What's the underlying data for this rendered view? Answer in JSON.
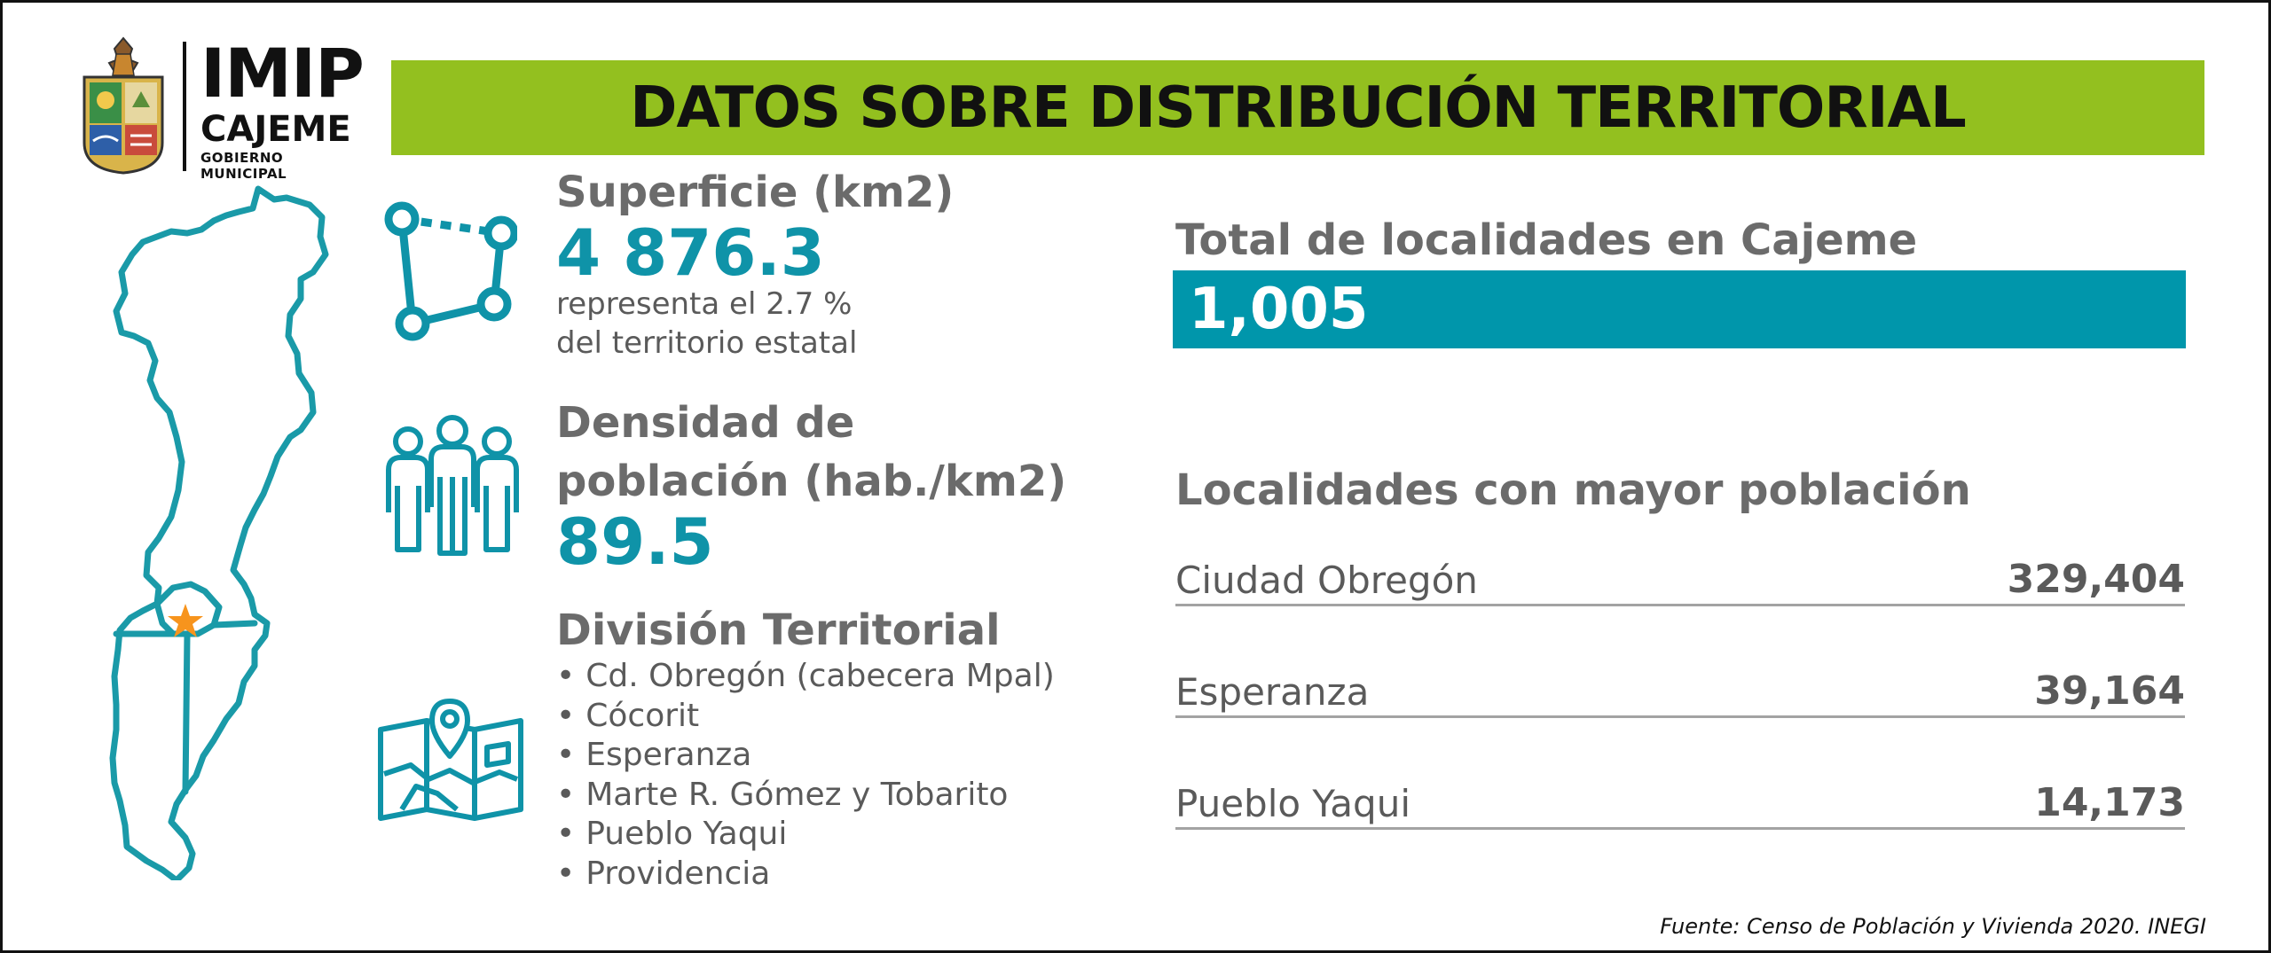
{
  "logo": {
    "brand": "IMIP",
    "city": "CAJEME",
    "subtitle": "GOBIERNO MUNICIPAL"
  },
  "title": "DATOS SOBRE DISTRIBUCIÓN TERRITORIAL",
  "superficie": {
    "label": "Superficie (km2)",
    "value": "4 876.3",
    "note_line1": "representa el 2.7 %",
    "note_line2": "del territorio estatal"
  },
  "densidad": {
    "label_line1": "Densidad de",
    "label_line2": "población (hab./km2)",
    "value": "89.5"
  },
  "division": {
    "label": "División Territorial",
    "items": [
      "Cd. Obregón (cabecera Mpal)",
      "Cócorit",
      "Esperanza",
      "Marte R. Gómez y Tobarito",
      "Pueblo Yaqui",
      "Providencia"
    ]
  },
  "total_localidades": {
    "label": "Total de localidades en Cajeme",
    "value": "1,005"
  },
  "top_localidades": {
    "label": "Localidades con mayor población",
    "rows": [
      {
        "name": "Ciudad Obregón",
        "value": "329,404"
      },
      {
        "name": "Esperanza",
        "value": "39,164"
      },
      {
        "name": "Pueblo Yaqui",
        "value": "14,173"
      }
    ]
  },
  "source": "Fuente: Censo de Población y Vivienda 2020. INEGI",
  "colors": {
    "accent_teal": "#0096ab",
    "banner_green": "#93c01f",
    "text_gray": "#6b6b6b",
    "marker_orange": "#f7941d"
  },
  "icons": {
    "seal": "municipal-seal-icon",
    "map": "cajeme-map-icon",
    "polygon": "polygon-icon",
    "people": "people-icon",
    "map_pin": "map-pin-icon",
    "marker": "star-icon"
  }
}
